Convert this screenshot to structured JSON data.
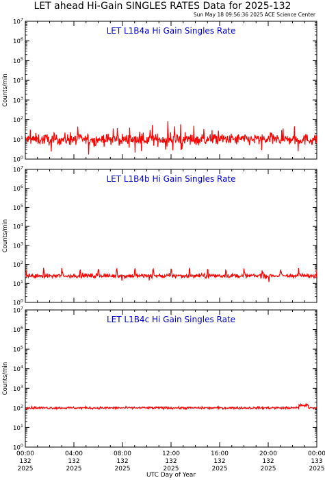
{
  "title": "LET ahead Hi-Gain SINGLES RATES Data for 2025-132",
  "timestamp": "Sun May 18 09:56:36 2025 ACE Science Center",
  "colors": {
    "data": "#ff0000",
    "panel_title": "#0000cc",
    "axis": "#000000"
  },
  "chart_data": [
    {
      "type": "line",
      "title": "LET L1B4a Hi Gain Singles Rate",
      "ylabel": "Counts/min",
      "yscale": "log",
      "ylim": [
        1,
        10000000
      ],
      "ytick_exponents": [
        "0",
        "1",
        "2",
        "3",
        "4",
        "5",
        "6",
        "7"
      ],
      "xlim": [
        0,
        24
      ],
      "series": [
        {
          "baseline": 10,
          "noise_decades": 0.2,
          "spikes": "frequent spikes up to ~50 and dips to ~2"
        }
      ]
    },
    {
      "type": "line",
      "title": "LET L1B4b Hi Gain Singles Rate",
      "ylabel": "Counts/min",
      "yscale": "log",
      "ylim": [
        1,
        10000000
      ],
      "ytick_exponents": [
        "0",
        "1",
        "2",
        "3",
        "4",
        "5",
        "6",
        "7"
      ],
      "xlim": [
        0,
        24
      ],
      "series": [
        {
          "baseline": 25,
          "noise_decades": 0.08,
          "spikes": "regular spikes to ~55 about every 1.5 hours"
        }
      ]
    },
    {
      "type": "line",
      "title": "LET L1B4c Hi Gain Singles Rate",
      "ylabel": "Counts/min",
      "yscale": "log",
      "ylim": [
        1,
        10000000
      ],
      "ytick_exponents": [
        "0",
        "1",
        "2",
        "3",
        "4",
        "5",
        "6",
        "7"
      ],
      "xlim": [
        0,
        24
      ],
      "series": [
        {
          "baseline": 100,
          "noise_decades": 0.04,
          "spikes": "slight rise to ~150 near end of day"
        }
      ]
    }
  ],
  "x_axis": {
    "label": "UTC Day of Year",
    "ticks": [
      {
        "hour": 0,
        "time": "00:00",
        "doy": "132",
        "year": "2025"
      },
      {
        "hour": 4,
        "time": "04:00",
        "doy": "132",
        "year": "2025"
      },
      {
        "hour": 8,
        "time": "08:00",
        "doy": "132",
        "year": "2025"
      },
      {
        "hour": 12,
        "time": "12:00",
        "doy": "132",
        "year": "2025"
      },
      {
        "hour": 16,
        "time": "16:00",
        "doy": "132",
        "year": "2025"
      },
      {
        "hour": 20,
        "time": "20:00",
        "doy": "132",
        "year": "2025"
      },
      {
        "hour": 24,
        "time": "00:00",
        "doy": "133",
        "year": "2025"
      }
    ]
  }
}
